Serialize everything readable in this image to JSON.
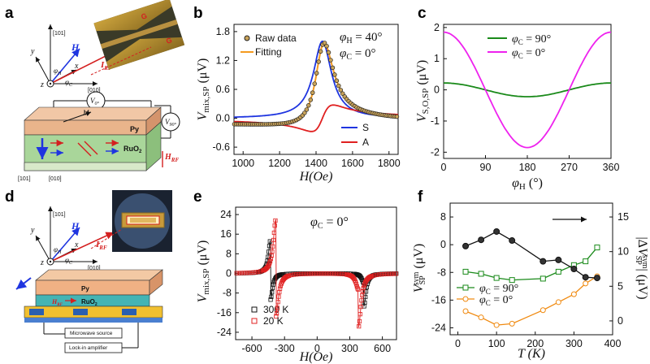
{
  "panel_labels": {
    "a": "a",
    "b": "b",
    "c": "c",
    "d": "d",
    "e": "e",
    "f": "f"
  },
  "schematic_a": {
    "axis_101": "[101]",
    "axis_010": "[010]",
    "x": "x",
    "y": "y",
    "z": "z",
    "H": "H",
    "I_RF": "I",
    "I_RF_sub": "RF",
    "phi_H": "φ",
    "phi_H_sub": "H",
    "phi_C": "φ",
    "phi_C_sub": "C",
    "G_top": "G",
    "G_bottom": "G",
    "V_0": "V",
    "V_0_sub": "0°",
    "V_90": "V",
    "V_90_sub": "90°",
    "Py": "Py",
    "RuO2": "RuO",
    "RuO2_sub": "2",
    "H_RF": "H",
    "H_RF_sub": "RF",
    "M": "M",
    "axis_101_small": "[101]",
    "axis_010_small": "[010]"
  },
  "schematic_d": {
    "axis_101": "[101]",
    "axis_010": "[010]",
    "x": "x",
    "y": "y",
    "z": "z",
    "H": "H",
    "I_RF": "I",
    "I_RF_sub": "RF",
    "phi_H": "φ",
    "phi_H_sub": "H",
    "phi_C": "φ",
    "phi_C_sub": "C",
    "Py": "Py",
    "RuO2": "RuO",
    "RuO2_sub": "2",
    "H_RF": "H",
    "H_RF_sub": "RF",
    "microwave": "Microwave source",
    "lockin": "Lock-in amplifier"
  },
  "chart_data": [
    {
      "id": "b",
      "type": "line",
      "xlabel": "H(Oe)",
      "ylabel": "V mix,SP (μV)",
      "xlim": [
        950,
        1850
      ],
      "ylim": [
        -0.75,
        1.95
      ],
      "xticks": [
        1000,
        1200,
        1400,
        1600,
        1800
      ],
      "yticks": [
        -0.6,
        0.0,
        0.6,
        1.2,
        1.8
      ],
      "ytick_labels": [
        "-0.6",
        "0.0",
        "0.6",
        "1.2",
        "1.8"
      ],
      "annotations": [
        "φH = 40°",
        "φC = 0°"
      ],
      "H0": 1435,
      "dH": 60,
      "offset": -0.08,
      "series": [
        {
          "name": "S",
          "color": "#1f35e0",
          "amp_s": 1.6,
          "amp_a": 0,
          "offset": 0
        },
        {
          "name": "A",
          "color": "#e02020",
          "amp_s": 0,
          "amp_a": 0.55,
          "offset": 0
        },
        {
          "name": "Fitting",
          "color": "#f59a1f",
          "amp_s": 1.6,
          "amp_a": 0.55,
          "offset": -0.08
        },
        {
          "name": "Raw data",
          "color": "#222222",
          "marker": "circle",
          "fill": "#c9a35a"
        }
      ],
      "legend_top": [
        "Raw data",
        "Fitting"
      ],
      "legend_bottom": [
        "S",
        "A"
      ]
    },
    {
      "id": "c",
      "type": "line",
      "xlabel": "φH (°)",
      "ylabel": "V S,O,SP (μV)",
      "xlim": [
        0,
        360
      ],
      "ylim": [
        -2.2,
        2.1
      ],
      "xticks": [
        0,
        90,
        180,
        270,
        360
      ],
      "yticks": [
        -2,
        -1,
        0,
        1,
        2
      ],
      "series": [
        {
          "name": "φC = 90°",
          "color": "#1a8a1a",
          "amplitude": 0.22
        },
        {
          "name": "φC = 0°",
          "color": "#ee22ee",
          "amplitude": 1.85
        }
      ]
    },
    {
      "id": "e",
      "type": "scatter",
      "xlabel": "H(Oe)",
      "ylabel": "V mix,SP (μV)",
      "xlim": [
        -750,
        730
      ],
      "ylim": [
        -27,
        27
      ],
      "xticks": [
        -600,
        -300,
        0,
        300,
        600
      ],
      "yticks": [
        -24,
        -16,
        -8,
        0,
        8,
        16,
        24
      ],
      "annotation": "φC = 0°",
      "series": [
        {
          "name": "300 K",
          "color": "#111111",
          "marker": "square",
          "H0": 430,
          "dH": 22,
          "amp": 13.5
        },
        {
          "name": "20 K",
          "color": "#e02020",
          "marker": "square",
          "H0": 380,
          "dH": 28,
          "amp": 22
        }
      ]
    },
    {
      "id": "f",
      "type": "line",
      "xlabel": "T (K)",
      "ylabel": "V SP sym (μV)",
      "ylabel_right": "|ΔV SP sym| (μV)",
      "xlim": [
        -20,
        400
      ],
      "ylim": [
        -26,
        12
      ],
      "xticks": [
        0,
        100,
        200,
        300,
        400
      ],
      "yticks": [
        -24,
        -16,
        -8,
        0,
        8
      ],
      "yticks_right": [
        0,
        5,
        10,
        15
      ],
      "series": [
        {
          "name": "φC = 90°",
          "color": "#1a8a1a",
          "marker": "square-open",
          "x": [
            20,
            60,
            100,
            140,
            220,
            260,
            300,
            330,
            360
          ],
          "y": [
            -7.8,
            -8.4,
            -9.6,
            -10.2,
            -9.8,
            -7.8,
            -5.9,
            -4.8,
            -0.8
          ]
        },
        {
          "name": "φC = 0°",
          "color": "#f08a10",
          "marker": "circle-open",
          "x": [
            20,
            60,
            100,
            140,
            220,
            260,
            300,
            330,
            360
          ],
          "y": [
            -19.2,
            -21.0,
            -23.2,
            -22.8,
            -18.9,
            -16.6,
            -14.3,
            -11.2,
            -9.1
          ]
        },
        {
          "name": "|ΔV|",
          "color": "#111111",
          "marker": "circle-filled",
          "axis": "right",
          "x": [
            20,
            60,
            100,
            140,
            220,
            260,
            300,
            330,
            360
          ],
          "y": [
            10.8,
            11.7,
            12.9,
            11.6,
            8.6,
            8.8,
            7.5,
            6.3,
            6.2
          ]
        }
      ]
    }
  ]
}
